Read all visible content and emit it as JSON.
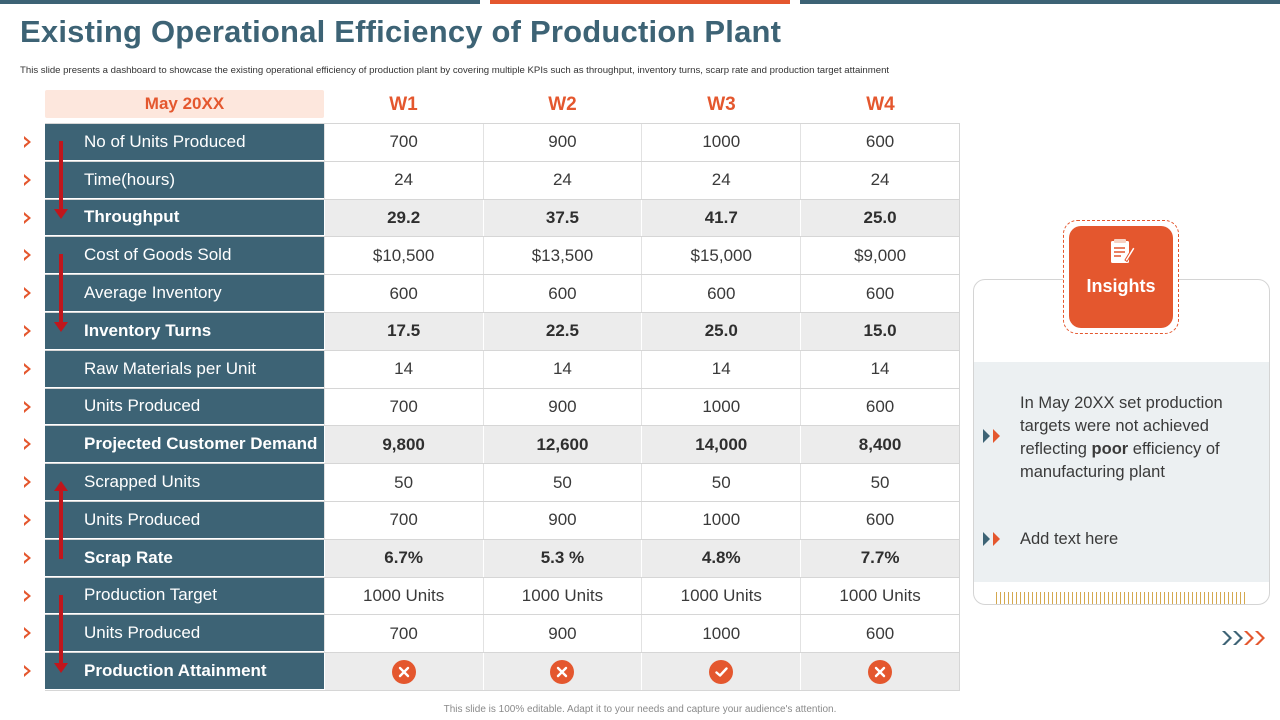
{
  "title": "Existing Operational Efficiency of Production Plant",
  "subtitle": "This slide presents a dashboard to showcase the existing operational efficiency of production plant by covering multiple KPIs such as throughput, inventory turns, scarp rate and production target attainment",
  "month": "May 20XX",
  "weeks": [
    "W1",
    "W2",
    "W3",
    "W4"
  ],
  "rows": [
    {
      "label": "No of Units Produced",
      "values": [
        "700",
        "900",
        "1000",
        "600"
      ],
      "bold": false
    },
    {
      "label": "Time(hours)",
      "values": [
        "24",
        "24",
        "24",
        "24"
      ],
      "bold": false
    },
    {
      "label": "Throughput",
      "values": [
        "29.2",
        "37.5",
        "41.7",
        "25.0"
      ],
      "bold": true
    },
    {
      "label": "Cost of Goods Sold",
      "values": [
        "$10,500",
        "$13,500",
        "$15,000",
        "$9,000"
      ],
      "bold": false
    },
    {
      "label": "Average Inventory",
      "values": [
        "600",
        "600",
        "600",
        "600"
      ],
      "bold": false
    },
    {
      "label": "Inventory Turns",
      "values": [
        "17.5",
        "22.5",
        "25.0",
        "15.0"
      ],
      "bold": true
    },
    {
      "label": "Raw Materials per Unit",
      "values": [
        "14",
        "14",
        "14",
        "14"
      ],
      "bold": false
    },
    {
      "label": "Units Produced",
      "values": [
        "700",
        "900",
        "1000",
        "600"
      ],
      "bold": false
    },
    {
      "label": "Projected Customer Demand",
      "values": [
        "9,800",
        "12,600",
        "14,000",
        "8,400"
      ],
      "bold": true
    },
    {
      "label": "Scrapped Units",
      "values": [
        "50",
        "50",
        "50",
        "50"
      ],
      "bold": false
    },
    {
      "label": "Units Produced",
      "values": [
        "700",
        "900",
        "1000",
        "600"
      ],
      "bold": false
    },
    {
      "label": "Scrap Rate",
      "values": [
        "6.7%",
        "5.3 %",
        "4.8%",
        "7.7%"
      ],
      "bold": true
    },
    {
      "label": "Production Target",
      "values": [
        "1000 Units",
        "1000 Units",
        "1000 Units",
        "1000 Units"
      ],
      "bold": false
    },
    {
      "label": "Units Produced",
      "values": [
        "700",
        "900",
        "1000",
        "600"
      ],
      "bold": false
    }
  ],
  "attainment": {
    "label": "Production Attainment",
    "status": [
      "cross-icon",
      "cross-icon",
      "check-icon",
      "cross-icon"
    ]
  },
  "insights": {
    "title": "Insights",
    "item1_pre": "In May 20XX set production targets were not achieved reflecting ",
    "item1_bold": "poor",
    "item1_post": " efficiency of manufacturing plant",
    "item2": "Add text here"
  },
  "footer": "This slide is 100% editable. Adapt it to your needs and capture your audience's attention.",
  "colors": {
    "teal": "#3d6375",
    "orange": "#e4572e",
    "red_arrow": "#c0161c",
    "month_bg": "#fde7dd"
  }
}
